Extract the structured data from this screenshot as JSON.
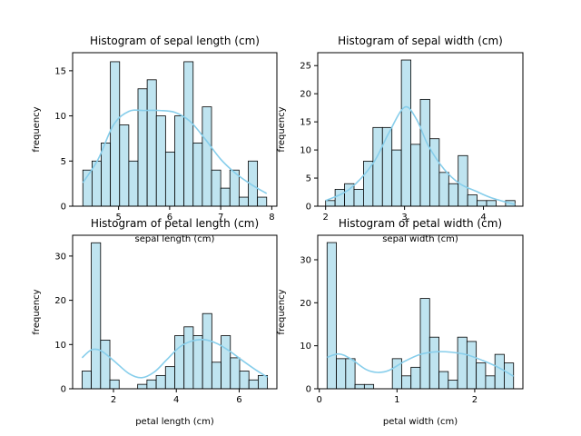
{
  "chart_data": [
    {
      "type": "bar",
      "subtype": "histogram",
      "title": "Histogram of sepal length (cm)",
      "xlabel": "sepal length (cm)",
      "ylabel": "frequency",
      "bin_start": 4.3,
      "bin_width": 0.18,
      "values": [
        4,
        5,
        7,
        16,
        9,
        5,
        13,
        14,
        10,
        6,
        10,
        16,
        7,
        11,
        4,
        2,
        4,
        1,
        5,
        1
      ],
      "kde": [
        [
          4.3,
          2.6
        ],
        [
          4.6,
          5.2
        ],
        [
          4.9,
          9.0
        ],
        [
          5.2,
          10.5
        ],
        [
          5.5,
          10.6
        ],
        [
          5.8,
          10.6
        ],
        [
          6.1,
          10.4
        ],
        [
          6.4,
          9.4
        ],
        [
          6.7,
          7.4
        ],
        [
          7.0,
          5.2
        ],
        [
          7.3,
          3.6
        ],
        [
          7.6,
          2.4
        ],
        [
          7.9,
          1.4
        ]
      ],
      "xlim": [
        4.1,
        8.1
      ],
      "ylim": [
        0,
        17
      ],
      "xticks": [
        5,
        6,
        7,
        8
      ],
      "yticks": [
        0,
        5,
        10,
        15
      ],
      "grid": false,
      "bar_color": "#bfe4f0",
      "kde_color": "#87ceeb"
    },
    {
      "type": "bar",
      "subtype": "histogram",
      "title": "Histogram of sepal width (cm)",
      "xlabel": "sepal width (cm)",
      "ylabel": "frequency",
      "bin_start": 2.0,
      "bin_width": 0.12,
      "values": [
        1,
        3,
        4,
        3,
        8,
        14,
        14,
        10,
        26,
        11,
        19,
        12,
        6,
        4,
        9,
        2,
        1,
        1,
        0,
        1
      ],
      "kde": [
        [
          2.0,
          1.0
        ],
        [
          2.3,
          3.0
        ],
        [
          2.6,
          7.6
        ],
        [
          2.8,
          13.0
        ],
        [
          3.0,
          17.6
        ],
        [
          3.15,
          15.5
        ],
        [
          3.3,
          10.8
        ],
        [
          3.5,
          6.6
        ],
        [
          3.7,
          4.0
        ],
        [
          3.9,
          2.7
        ],
        [
          4.1,
          1.5
        ],
        [
          4.4,
          0.3
        ]
      ],
      "xlim": [
        1.9,
        4.5
      ],
      "ylim": [
        0,
        27.3
      ],
      "xticks": [
        2,
        3,
        4
      ],
      "yticks": [
        0,
        5,
        10,
        15,
        20,
        25
      ],
      "grid": false,
      "bar_color": "#bfe4f0",
      "kde_color": "#87ceeb"
    },
    {
      "type": "bar",
      "subtype": "histogram",
      "title": "Histogram of petal length (cm)",
      "xlabel": "petal length (cm)",
      "ylabel": "frequency",
      "bin_start": 1.0,
      "bin_width": 0.295,
      "values": [
        4,
        33,
        11,
        2,
        0,
        0,
        1,
        2,
        3,
        5,
        12,
        14,
        12,
        17,
        6,
        12,
        7,
        4,
        2,
        3
      ],
      "kde": [
        [
          1.0,
          7.0
        ],
        [
          1.3,
          8.8
        ],
        [
          1.6,
          8.6
        ],
        [
          2.0,
          6.4
        ],
        [
          2.5,
          3.4
        ],
        [
          2.9,
          2.5
        ],
        [
          3.3,
          3.8
        ],
        [
          3.7,
          6.6
        ],
        [
          4.1,
          9.4
        ],
        [
          4.5,
          10.8
        ],
        [
          4.9,
          11.1
        ],
        [
          5.3,
          10.2
        ],
        [
          5.7,
          8.5
        ],
        [
          6.1,
          6.4
        ],
        [
          6.5,
          4.4
        ],
        [
          6.9,
          2.6
        ]
      ],
      "xlim": [
        0.7,
        7.2
      ],
      "ylim": [
        0,
        34.7
      ],
      "xticks": [
        2,
        4,
        6
      ],
      "yticks": [
        0,
        10,
        20,
        30
      ],
      "grid": false,
      "bar_color": "#bfe4f0",
      "kde_color": "#87ceeb"
    },
    {
      "type": "bar",
      "subtype": "histogram",
      "title": "Histogram of petal width (cm)",
      "xlabel": "petal width (cm)",
      "ylabel": "frequency",
      "bin_start": 0.1,
      "bin_width": 0.12,
      "values": [
        34,
        7,
        7,
        1,
        1,
        0,
        0,
        7,
        3,
        5,
        21,
        12,
        4,
        2,
        12,
        11,
        6,
        3,
        8,
        6
      ],
      "kde": [
        [
          0.1,
          7.3
        ],
        [
          0.25,
          8.1
        ],
        [
          0.4,
          7.0
        ],
        [
          0.6,
          4.5
        ],
        [
          0.75,
          3.8
        ],
        [
          0.9,
          4.3
        ],
        [
          1.1,
          6.4
        ],
        [
          1.3,
          8.0
        ],
        [
          1.5,
          8.6
        ],
        [
          1.7,
          8.5
        ],
        [
          1.9,
          7.9
        ],
        [
          2.1,
          6.6
        ],
        [
          2.3,
          5.0
        ],
        [
          2.5,
          2.9
        ]
      ],
      "xlim": [
        -0.02,
        2.62
      ],
      "ylim": [
        0,
        35.7
      ],
      "xticks": [
        0,
        1,
        2
      ],
      "yticks": [
        0,
        10,
        20,
        30
      ],
      "grid": false,
      "bar_color": "#bfe4f0",
      "kde_color": "#87ceeb"
    }
  ]
}
